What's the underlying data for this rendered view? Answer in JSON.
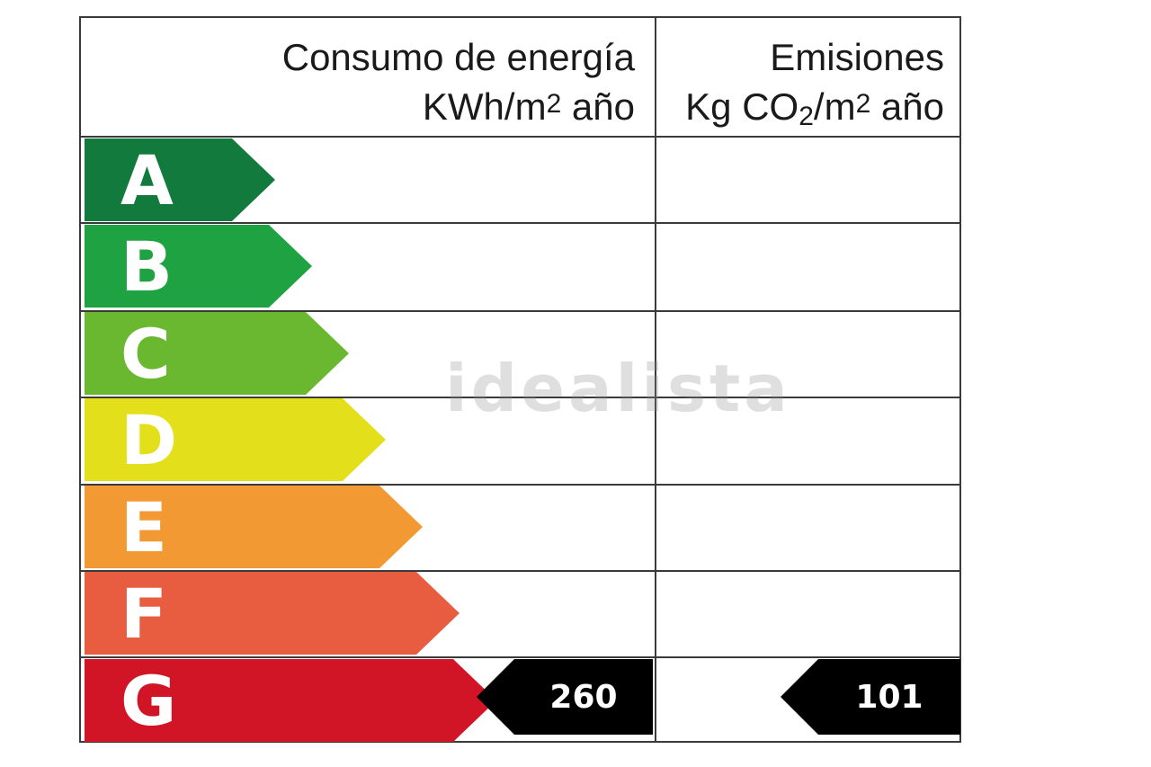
{
  "header": {
    "energy_line1": "Consumo de energía",
    "energy_line2_prefix": "KWh/m",
    "energy_line2_sup": "2",
    "energy_line2_suffix": " año",
    "emissions_line1": "Emisiones",
    "emissions_line2_prefix": "Kg CO",
    "emissions_line2_sub": "2",
    "emissions_line2_mid": "/m",
    "emissions_line2_sup": "2",
    "emissions_line2_suffix": " año"
  },
  "ratings": [
    {
      "letter": "A",
      "color": "#127a3c"
    },
    {
      "letter": "B",
      "color": "#1fa242"
    },
    {
      "letter": "C",
      "color": "#6ab82f"
    },
    {
      "letter": "D",
      "color": "#e3e01b"
    },
    {
      "letter": "E",
      "color": "#f29934"
    },
    {
      "letter": "F",
      "color": "#e85c40"
    },
    {
      "letter": "G",
      "color": "#d11526"
    }
  ],
  "energy_value": "260",
  "emissions_value": "101",
  "current_rating": "G",
  "watermark": "idealista"
}
